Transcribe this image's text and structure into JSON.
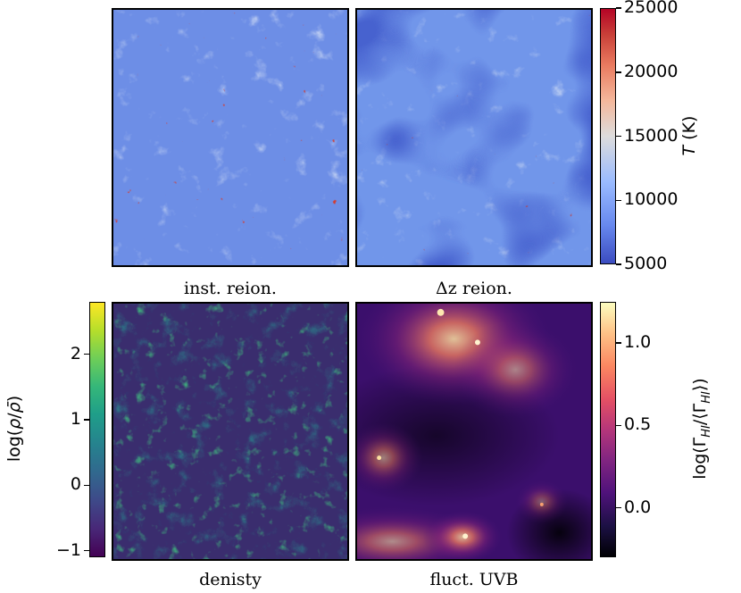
{
  "panels": [
    {
      "id": "inst",
      "caption": "inst. reion.",
      "colormap": "coolwarm",
      "quantity": "T"
    },
    {
      "id": "dz",
      "caption": "Δz reion.",
      "colormap": "coolwarm",
      "quantity": "T"
    },
    {
      "id": "dens",
      "caption": "denisty",
      "colormap": "viridis",
      "quantity": "density"
    },
    {
      "id": "uvb",
      "caption": "fluct. UVB",
      "colormap": "magma",
      "quantity": "photoionization"
    }
  ],
  "colorbars": {
    "temperature": {
      "label": "T (K)",
      "min": 5000,
      "max": 25000,
      "ticks": [
        "5000",
        "10000",
        "15000",
        "20000",
        "25000"
      ],
      "tick_values": [
        5000,
        10000,
        15000,
        20000,
        25000
      ]
    },
    "density": {
      "label": "log(ρ/ρ̄)",
      "min": -1.1,
      "max": 2.8,
      "ticks": [
        "−1",
        "0",
        "1",
        "2"
      ],
      "tick_values": [
        -1,
        0,
        1,
        2
      ]
    },
    "uvb": {
      "label": "log(ΓHI/⟨ΓHI⟩)",
      "min": -0.3,
      "max": 1.25,
      "ticks": [
        "0.0",
        "0.5",
        "1.0"
      ],
      "tick_values": [
        0.0,
        0.5,
        1.0
      ]
    }
  },
  "chart_data": {
    "type": "heatmap",
    "maps": [
      {
        "title": "inst. reion.",
        "quantity": "T (K)",
        "range": [
          5000,
          25000
        ]
      },
      {
        "title": "Δz reion.",
        "quantity": "T (K)",
        "range": [
          5000,
          25000
        ]
      },
      {
        "title": "denisty",
        "quantity": "log(ρ/ρ̄)",
        "range": [
          -1.1,
          2.8
        ]
      },
      {
        "title": "fluct. UVB",
        "quantity": "log(ΓHI/⟨ΓHI⟩)",
        "range": [
          -0.3,
          1.25
        ]
      }
    ]
  },
  "colors": {
    "coolwarm": [
      "#3b4cc0",
      "#6788ee",
      "#9abbff",
      "#c9d7f0",
      "#edd1c2",
      "#f7a889",
      "#e26952",
      "#b40426"
    ],
    "viridis": [
      "#440154",
      "#482878",
      "#3e4989",
      "#31688e",
      "#26828e",
      "#1f9e89",
      "#35b779",
      "#6ece58",
      "#b5de2b",
      "#fde725"
    ],
    "magma": [
      "#000004",
      "#1c1044",
      "#4f127b",
      "#812581",
      "#b5367a",
      "#e55064",
      "#fb8761",
      "#fec287",
      "#fcfdbf"
    ]
  }
}
